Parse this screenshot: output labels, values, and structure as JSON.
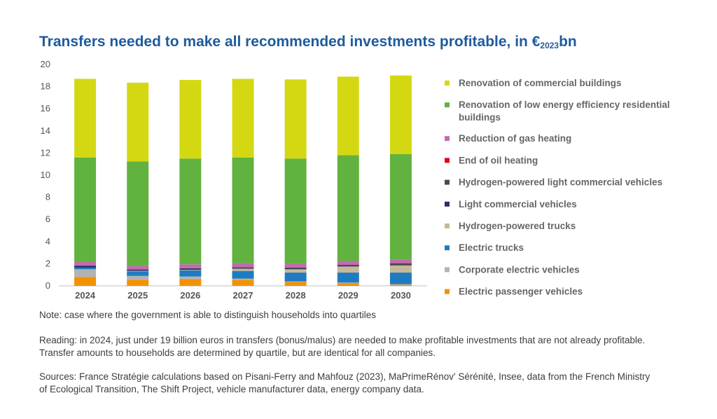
{
  "title": {
    "main": "Transfers needed to make all recommended investments profitable, in €",
    "sub": "2023",
    "suffix": "bn"
  },
  "note": "Note: case where the government is able to distinguish households into quartiles",
  "reading": "Reading: in 2024, just under 19 billion euros in transfers (bonus/malus) are needed to make profitable investments that are not already profitable. Transfer amounts to households are determined by quartile, but are identical for all companies.",
  "sources": "Sources: France Stratégie calculations based on Pisani-Ferry and Mahfouz (2023), MaPrimeRénov' Sérénité, Insee, data from the French Ministry of Ecological Transition, The Shift Project, vehicle manufacturer data, energy company data.",
  "chart_data": {
    "type": "bar",
    "stacked": true,
    "categories": [
      "2024",
      "2025",
      "2026",
      "2027",
      "2028",
      "2029",
      "2030"
    ],
    "ylim": [
      0,
      20
    ],
    "yticks": [
      0,
      2,
      4,
      6,
      8,
      10,
      12,
      14,
      16,
      18,
      20
    ],
    "grid": false,
    "legend_position": "right",
    "series": [
      {
        "name": "Electric passenger vehicles",
        "color": "#f39200",
        "values": [
          0.8,
          0.55,
          0.6,
          0.55,
          0.35,
          0.25,
          0.1
        ]
      },
      {
        "name": "Corporate electric vehicles",
        "color": "#b3b3b3",
        "values": [
          0.7,
          0.35,
          0.25,
          0.1,
          0.05,
          0.05,
          0.05
        ]
      },
      {
        "name": "Electric trucks",
        "color": "#1f7bc1",
        "values": [
          0.15,
          0.4,
          0.55,
          0.7,
          0.8,
          0.9,
          1.05
        ]
      },
      {
        "name": "Hydrogen-powered trucks",
        "color": "#c8b89a",
        "values": [
          0.0,
          0.05,
          0.05,
          0.2,
          0.3,
          0.55,
          0.65
        ]
      },
      {
        "name": "Light commercial vehicles",
        "color": "#2b2d6e",
        "values": [
          0.15,
          0.1,
          0.1,
          0.05,
          0.05,
          0.05,
          0.05
        ]
      },
      {
        "name": "Hydrogen-powered light commercial vehicles",
        "color": "#4a4a4a",
        "values": [
          0.05,
          0.05,
          0.05,
          0.1,
          0.1,
          0.1,
          0.15
        ]
      },
      {
        "name": "End of oil heating",
        "color": "#e2001a",
        "values": [
          0.0,
          0.0,
          0.0,
          0.0,
          0.0,
          0.0,
          0.0
        ]
      },
      {
        "name": "Reduction of gas heating",
        "color": "#c46ab0",
        "values": [
          0.3,
          0.3,
          0.35,
          0.35,
          0.35,
          0.35,
          0.35
        ]
      },
      {
        "name": "Renovation of low energy efficiency residential buildings",
        "color": "#62b23f",
        "values": [
          9.45,
          9.45,
          9.55,
          9.55,
          9.5,
          9.55,
          9.5
        ]
      },
      {
        "name": "Renovation of commercial buildings",
        "color": "#d4d813",
        "values": [
          7.1,
          7.1,
          7.1,
          7.1,
          7.15,
          7.1,
          7.1
        ]
      }
    ],
    "legend_order": [
      "Renovation of commercial buildings",
      "Renovation of low energy efficiency residential buildings",
      "Reduction of gas heating",
      "End of oil heating",
      "Hydrogen-powered light commercial vehicles",
      "Light commercial vehicles",
      "Hydrogen-powered trucks",
      "Electric trucks",
      "Corporate electric vehicles",
      "Electric passenger vehicles"
    ]
  }
}
